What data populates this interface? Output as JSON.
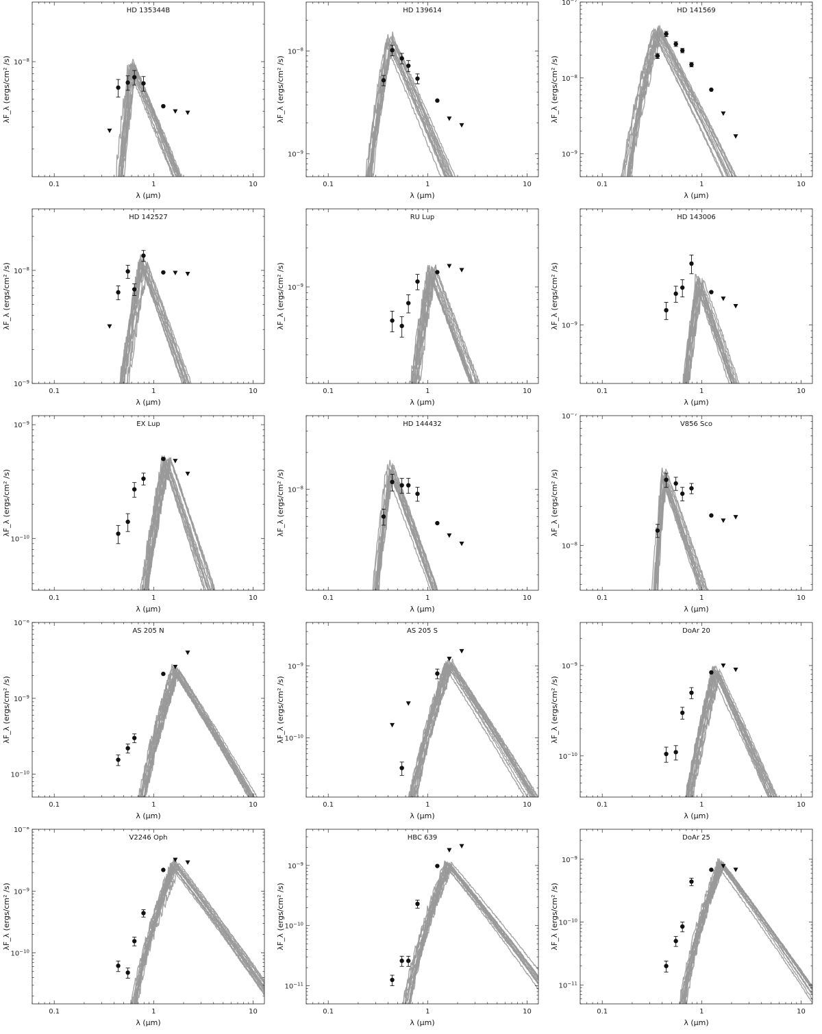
{
  "figure": {
    "xlabel": "λ (μm)",
    "ylabel": "λF_λ (ergs/cm² /s)",
    "xscale": "log",
    "yscale": "log",
    "xlim": [
      0.06,
      13
    ],
    "x_ticks": [
      "0.1",
      "1",
      "10"
    ],
    "model_color": "#999999",
    "point_color": "#111111"
  },
  "chart_data": [
    {
      "type": "scatter",
      "title": "HD 135344B",
      "ylim": [
        1.2e-09,
        3e-08
      ],
      "y_tick_labels": [
        "10^-8"
      ],
      "model": {
        "amp": 1e-08,
        "peak": 0.6,
        "cut": 0.3,
        "falloff": 1.9
      },
      "points": [
        {
          "x": 0.44,
          "y": 6.2e-09,
          "err": 1e-09
        },
        {
          "x": 0.55,
          "y": 6.8e-09,
          "err": 9e-10
        },
        {
          "x": 0.64,
          "y": 7.5e-09,
          "err": 1e-09
        },
        {
          "x": 0.79,
          "y": 6.7e-09,
          "err": 9e-10
        },
        {
          "x": 1.25,
          "y": 4.4e-09,
          "err": 0
        }
      ],
      "limits": [
        {
          "x": 0.36,
          "y": 2.8e-09
        },
        {
          "x": 1.65,
          "y": 4e-09
        },
        {
          "x": 2.2,
          "y": 3.9e-09
        }
      ]
    },
    {
      "type": "scatter",
      "title": "HD 139614",
      "ylim": [
        6e-10,
        3e-08
      ],
      "y_tick_labels": [
        "10^-8",
        "10^-9"
      ],
      "model": {
        "amp": 1.4e-08,
        "peak": 0.42,
        "cut": 0.16,
        "falloff": 2.2
      },
      "points": [
        {
          "x": 0.36,
          "y": 5.2e-09,
          "err": 6e-10
        },
        {
          "x": 0.44,
          "y": 1.02e-08,
          "err": 1.2e-09
        },
        {
          "x": 0.55,
          "y": 8.5e-09,
          "err": 1e-09
        },
        {
          "x": 0.64,
          "y": 7.2e-09,
          "err": 9e-10
        },
        {
          "x": 0.79,
          "y": 5.4e-09,
          "err": 6e-10
        },
        {
          "x": 1.25,
          "y": 3.3e-09,
          "err": 0
        }
      ],
      "limits": [
        {
          "x": 1.65,
          "y": 2.2e-09
        },
        {
          "x": 2.2,
          "y": 1.9e-09
        }
      ]
    },
    {
      "type": "scatter",
      "title": "HD 141569",
      "ylim": [
        5e-10,
        1e-07
      ],
      "y_tick_labels": [
        "10^-7",
        "10^-8",
        "10^-9"
      ],
      "model": {
        "amp": 4.5e-08,
        "peak": 0.36,
        "cut": 0.12,
        "falloff": 2.5
      },
      "points": [
        {
          "x": 0.36,
          "y": 1.95e-08,
          "err": 1.5e-09
        },
        {
          "x": 0.44,
          "y": 3.8e-08,
          "err": 3e-09
        },
        {
          "x": 0.55,
          "y": 2.8e-08,
          "err": 2e-09
        },
        {
          "x": 0.64,
          "y": 2.3e-08,
          "err": 1.5e-09
        },
        {
          "x": 0.79,
          "y": 1.5e-08,
          "err": 1e-09
        },
        {
          "x": 1.25,
          "y": 7e-09,
          "err": 0
        }
      ],
      "limits": [
        {
          "x": 1.65,
          "y": 3.4e-09
        },
        {
          "x": 2.2,
          "y": 1.7e-09
        }
      ]
    },
    {
      "type": "scatter",
      "title": "HD 142527",
      "ylim": [
        1e-09,
        3.5e-08
      ],
      "y_tick_labels": [
        "10^-8",
        "10^-9"
      ],
      "model": {
        "amp": 1.25e-08,
        "peak": 0.8,
        "cut": 0.26,
        "falloff": 2.4
      },
      "points": [
        {
          "x": 0.44,
          "y": 6.4e-09,
          "err": 9e-10
        },
        {
          "x": 0.55,
          "y": 9.8e-09,
          "err": 1.3e-09
        },
        {
          "x": 0.64,
          "y": 6.8e-09,
          "err": 8e-10
        },
        {
          "x": 0.79,
          "y": 1.35e-08,
          "err": 1.5e-09
        },
        {
          "x": 1.25,
          "y": 9.6e-09,
          "err": 0
        }
      ],
      "limits": [
        {
          "x": 0.36,
          "y": 3.2e-09
        },
        {
          "x": 1.65,
          "y": 9.5e-09
        },
        {
          "x": 2.2,
          "y": 9.3e-09
        }
      ]
    },
    {
      "type": "scatter",
      "title": "RU Lup",
      "ylim": [
        1.8e-10,
        4e-09
      ],
      "y_tick_labels": [
        "10^-9"
      ],
      "model": {
        "amp": 1.4e-09,
        "peak": 1.1,
        "cut": 0.38,
        "falloff": 2.0
      },
      "points": [
        {
          "x": 0.44,
          "y": 5.5e-10,
          "err": 1e-10
        },
        {
          "x": 0.55,
          "y": 5e-10,
          "err": 9e-11
        },
        {
          "x": 0.64,
          "y": 7.5e-10,
          "err": 1.2e-10
        },
        {
          "x": 0.79,
          "y": 1.1e-09,
          "err": 1.5e-10
        },
        {
          "x": 1.25,
          "y": 1.3e-09,
          "err": 0
        }
      ],
      "limits": [
        {
          "x": 1.65,
          "y": 1.45e-09
        },
        {
          "x": 2.2,
          "y": 1.35e-09
        }
      ]
    },
    {
      "type": "scatter",
      "title": "HD 143006",
      "ylim": [
        3.5e-10,
        8e-09
      ],
      "y_tick_labels": [
        "10^-9"
      ],
      "model": {
        "amp": 2.3e-09,
        "peak": 0.95,
        "cut": 0.38,
        "falloff": 2.2
      },
      "points": [
        {
          "x": 0.44,
          "y": 1.3e-09,
          "err": 2e-10
        },
        {
          "x": 0.55,
          "y": 1.75e-09,
          "err": 2.5e-10
        },
        {
          "x": 0.64,
          "y": 1.95e-09,
          "err": 3e-10
        },
        {
          "x": 0.79,
          "y": 3e-09,
          "err": 5e-10
        },
        {
          "x": 1.25,
          "y": 1.8e-09,
          "err": 0
        }
      ],
      "limits": [
        {
          "x": 1.65,
          "y": 1.6e-09
        },
        {
          "x": 2.2,
          "y": 1.4e-09
        }
      ]
    },
    {
      "type": "scatter",
      "title": "EX Lup",
      "ylim": [
        3.5e-11,
        1.2e-09
      ],
      "y_tick_labels": [
        "10^-9",
        "10^-10"
      ],
      "model": {
        "amp": 5.3e-10,
        "peak": 1.35,
        "cut": 0.42,
        "falloff": 2.6
      },
      "points": [
        {
          "x": 0.44,
          "y": 1.1e-10,
          "err": 2e-11
        },
        {
          "x": 0.55,
          "y": 1.4e-10,
          "err": 2.5e-11
        },
        {
          "x": 0.64,
          "y": 2.7e-10,
          "err": 4e-11
        },
        {
          "x": 0.79,
          "y": 3.35e-10,
          "err": 4e-11
        },
        {
          "x": 1.25,
          "y": 5e-10,
          "err": 0
        }
      ],
      "limits": [
        {
          "x": 1.65,
          "y": 4.8e-10
        },
        {
          "x": 2.2,
          "y": 3.7e-10
        }
      ]
    },
    {
      "type": "scatter",
      "title": "HD 144432",
      "ylim": [
        1.5e-09,
        4e-08
      ],
      "y_tick_labels": [
        "10^-8"
      ],
      "model": {
        "amp": 1.6e-08,
        "peak": 0.42,
        "cut": 0.2,
        "falloff": 2.2
      },
      "points": [
        {
          "x": 0.36,
          "y": 6e-09,
          "err": 9e-10
        },
        {
          "x": 0.44,
          "y": 1.15e-08,
          "err": 1.8e-09
        },
        {
          "x": 0.55,
          "y": 1.08e-08,
          "err": 1.5e-09
        },
        {
          "x": 0.64,
          "y": 1.08e-08,
          "err": 1.5e-09
        },
        {
          "x": 0.79,
          "y": 9.2e-09,
          "err": 1.2e-09
        },
        {
          "x": 1.25,
          "y": 5.3e-09,
          "err": 0
        }
      ],
      "limits": [
        {
          "x": 1.65,
          "y": 4.2e-09
        },
        {
          "x": 2.2,
          "y": 3.6e-09
        }
      ]
    },
    {
      "type": "scatter",
      "title": "V856 Sco",
      "ylim": [
        4.5e-09,
        1e-07
      ],
      "y_tick_labels": [
        "10^-7",
        "10^-8"
      ],
      "model": {
        "amp": 3.7e-08,
        "peak": 0.42,
        "cut": 0.26,
        "falloff": 2.2
      },
      "points": [
        {
          "x": 0.36,
          "y": 1.3e-08,
          "err": 1.5e-09
        },
        {
          "x": 0.44,
          "y": 3.2e-08,
          "err": 4e-09
        },
        {
          "x": 0.55,
          "y": 3e-08,
          "err": 3.5e-09
        },
        {
          "x": 0.64,
          "y": 2.5e-08,
          "err": 3e-09
        },
        {
          "x": 0.79,
          "y": 2.75e-08,
          "err": 2.5e-09
        },
        {
          "x": 1.25,
          "y": 1.7e-08,
          "err": 0
        }
      ],
      "limits": [
        {
          "x": 1.65,
          "y": 1.55e-08
        },
        {
          "x": 2.2,
          "y": 1.65e-08
        }
      ]
    },
    {
      "type": "scatter",
      "title": "AS 205 N",
      "ylim": [
        5e-11,
        1e-08
      ],
      "y_tick_labels": [
        "10^-8",
        "10^-9",
        "10^-10"
      ],
      "model": {
        "amp": 2.5e-09,
        "peak": 1.65,
        "cut": 0.42,
        "falloff": 2.1
      },
      "points": [
        {
          "x": 0.44,
          "y": 1.55e-10,
          "err": 2.5e-11
        },
        {
          "x": 0.55,
          "y": 2.2e-10,
          "err": 3e-11
        },
        {
          "x": 0.64,
          "y": 3e-10,
          "err": 4e-11
        },
        {
          "x": 1.25,
          "y": 2.1e-09,
          "err": 0
        }
      ],
      "limits": [
        {
          "x": 1.65,
          "y": 2.6e-09
        },
        {
          "x": 2.2,
          "y": 4e-09
        }
      ]
    },
    {
      "type": "scatter",
      "title": "AS 205 S",
      "ylim": [
        1.5e-11,
        4e-09
      ],
      "y_tick_labels": [
        "10^-9",
        "10^-10"
      ],
      "model": {
        "amp": 1.1e-09,
        "peak": 1.65,
        "cut": 0.42,
        "falloff": 2.1
      },
      "points": [
        {
          "x": 0.55,
          "y": 3.8e-11,
          "err": 8e-12
        },
        {
          "x": 1.25,
          "y": 7.8e-10,
          "err": 1.2e-10
        }
      ],
      "limits": [
        {
          "x": 0.44,
          "y": 1.5e-10
        },
        {
          "x": 0.64,
          "y": 3e-10
        },
        {
          "x": 1.65,
          "y": 1.25e-09
        },
        {
          "x": 2.2,
          "y": 1.6e-09
        }
      ]
    },
    {
      "type": "scatter",
      "title": "DoAr 20",
      "ylim": [
        3.5e-11,
        3e-09
      ],
      "y_tick_labels": [
        "10^-9",
        "10^-10"
      ],
      "model": {
        "amp": 9.5e-10,
        "peak": 1.4,
        "cut": 0.38,
        "falloff": 2.4
      },
      "points": [
        {
          "x": 0.44,
          "y": 1.05e-10,
          "err": 2e-11
        },
        {
          "x": 0.55,
          "y": 1.1e-10,
          "err": 2e-11
        },
        {
          "x": 0.64,
          "y": 3e-10,
          "err": 4.5e-11
        },
        {
          "x": 0.79,
          "y": 5e-10,
          "err": 7e-11
        },
        {
          "x": 1.25,
          "y": 8.4e-10,
          "err": 0
        }
      ],
      "limits": [
        {
          "x": 1.65,
          "y": 1e-09
        },
        {
          "x": 2.2,
          "y": 9e-10
        }
      ]
    },
    {
      "type": "scatter",
      "title": "V2246 Oph",
      "ylim": [
        1.5e-11,
        1e-08
      ],
      "y_tick_labels": [
        "10^-8",
        "10^-9",
        "10^-10"
      ],
      "model": {
        "amp": 2.9e-09,
        "peak": 1.65,
        "cut": 0.42,
        "falloff": 2.1
      },
      "points": [
        {
          "x": 0.44,
          "y": 6.2e-11,
          "err": 1.2e-11
        },
        {
          "x": 0.55,
          "y": 4.8e-11,
          "err": 9e-12
        },
        {
          "x": 0.64,
          "y": 1.55e-10,
          "err": 2.5e-11
        },
        {
          "x": 0.79,
          "y": 4.4e-10,
          "err": 6e-11
        },
        {
          "x": 1.25,
          "y": 2.2e-09,
          "err": 0
        }
      ],
      "limits": [
        {
          "x": 1.65,
          "y": 3.2e-09
        },
        {
          "x": 2.2,
          "y": 2.9e-09
        }
      ]
    },
    {
      "type": "scatter",
      "title": "HBC 639",
      "ylim": [
        5e-12,
        4e-09
      ],
      "y_tick_labels": [
        "10^-9",
        "10^-10",
        "10^-11"
      ],
      "model": {
        "amp": 1.1e-09,
        "peak": 1.65,
        "cut": 0.42,
        "falloff": 2.0
      },
      "points": [
        {
          "x": 0.44,
          "y": 1.25e-11,
          "err": 2.5e-12
        },
        {
          "x": 0.55,
          "y": 2.6e-11,
          "err": 5e-12
        },
        {
          "x": 0.64,
          "y": 2.6e-11,
          "err": 5e-12
        },
        {
          "x": 0.79,
          "y": 2.3e-10,
          "err": 3.5e-11
        },
        {
          "x": 1.25,
          "y": 9.8e-10,
          "err": 0
        }
      ],
      "limits": [
        {
          "x": 1.65,
          "y": 1.8e-09
        },
        {
          "x": 2.2,
          "y": 2.1e-09
        }
      ]
    },
    {
      "type": "scatter",
      "title": "DoAr 25",
      "ylim": [
        5e-12,
        3e-09
      ],
      "y_tick_labels": [
        "10^-9",
        "10^-10",
        "10^-11"
      ],
      "model": {
        "amp": 9e-10,
        "peak": 1.6,
        "cut": 0.42,
        "falloff": 2.1
      },
      "points": [
        {
          "x": 0.44,
          "y": 2e-11,
          "err": 4e-12
        },
        {
          "x": 0.55,
          "y": 5e-11,
          "err": 9e-12
        },
        {
          "x": 0.64,
          "y": 8.5e-11,
          "err": 1.5e-11
        },
        {
          "x": 0.79,
          "y": 4.4e-10,
          "err": 6e-11
        },
        {
          "x": 1.25,
          "y": 6.8e-10,
          "err": 0
        }
      ],
      "limits": [
        {
          "x": 1.65,
          "y": 7.8e-10
        },
        {
          "x": 2.2,
          "y": 6.8e-10
        }
      ]
    }
  ]
}
